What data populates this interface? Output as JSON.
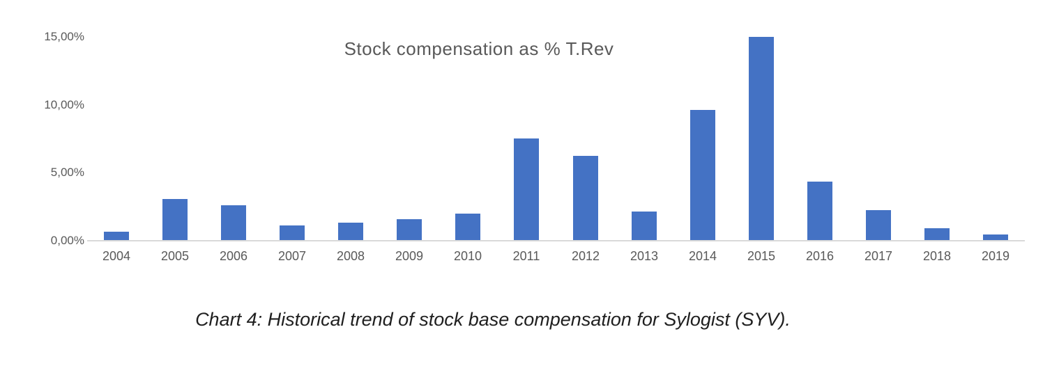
{
  "page": {
    "background_color": "#ffffff"
  },
  "chart": {
    "bar_color": "#4472c4",
    "axis_line_color": "#d9d9d9",
    "label_color": "#595959",
    "title_color": "#595959"
  },
  "chart_data": {
    "type": "bar",
    "title": "Stock compensation as % T.Rev",
    "categories": [
      "2004",
      "2005",
      "2006",
      "2007",
      "2008",
      "2009",
      "2010",
      "2011",
      "2012",
      "2013",
      "2014",
      "2015",
      "2016",
      "2017",
      "2018",
      "2019"
    ],
    "values": [
      0.6,
      3.0,
      2.55,
      1.05,
      1.3,
      1.55,
      1.95,
      7.45,
      6.2,
      2.1,
      9.55,
      14.95,
      4.3,
      2.2,
      0.85,
      0.4
    ],
    "xlabel": "",
    "ylabel": "",
    "ylim": [
      0,
      15
    ],
    "y_ticks": [
      {
        "value": 15,
        "label": "15,00%"
      },
      {
        "value": 10,
        "label": "10,00%"
      },
      {
        "value": 5,
        "label": "5,00%"
      },
      {
        "value": 0,
        "label": "0,00%"
      }
    ],
    "grid": false,
    "legend": false,
    "series_color": "#4472c4"
  },
  "caption": {
    "text": "Chart 4: Historical trend of stock base compensation for Sylogist (SYV)."
  }
}
